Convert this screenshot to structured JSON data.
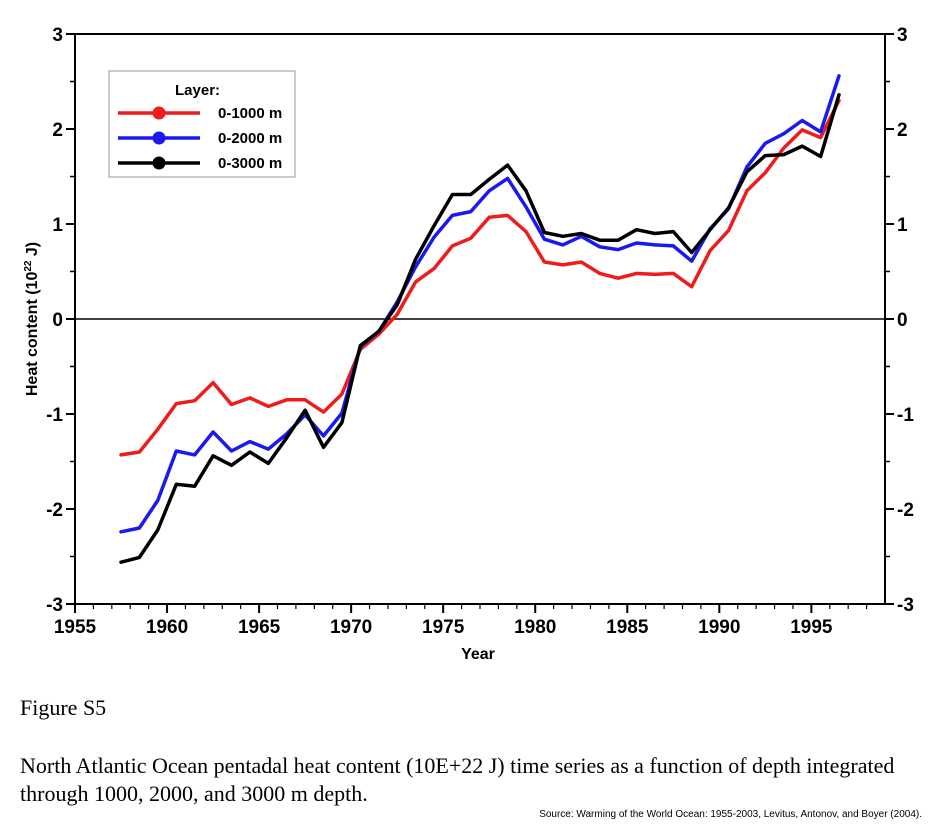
{
  "figure": {
    "label": "Figure S5",
    "caption": "North Atlantic Ocean pentadal heat content (10E+22 J) time series as a function of depth integrated through 1000, 2000, and 3000 m depth.",
    "source": "Source: Warming of the World Ocean: 1955-2003, Levitus, Antonov, and Boyer (2004)."
  },
  "chart_data": {
    "type": "line",
    "title": "",
    "xlabel": "Year",
    "ylabel_main": "Heat content (10",
    "ylabel_sup": "22",
    "ylabel_tail": " J)",
    "xlim": [
      1955,
      1999
    ],
    "ylim": [
      -3,
      3
    ],
    "x_ticks": [
      "1955",
      "1960",
      "1965",
      "1970",
      "1975",
      "1980",
      "1985",
      "1990",
      "1995"
    ],
    "y_ticks": [
      "-3",
      "-2",
      "-1",
      "0",
      "1",
      "2",
      "3"
    ],
    "legend_title": "Layer:",
    "legend_position": "top-left",
    "x": [
      1957.5,
      1958.5,
      1959.5,
      1960.5,
      1961.5,
      1962.5,
      1963.5,
      1964.5,
      1965.5,
      1966.5,
      1967.5,
      1968.5,
      1969.5,
      1970.5,
      1971.5,
      1972.5,
      1973.5,
      1974.5,
      1975.5,
      1976.5,
      1977.5,
      1978.5,
      1979.5,
      1980.5,
      1981.5,
      1982.5,
      1983.5,
      1984.5,
      1985.5,
      1986.5,
      1987.5,
      1988.5,
      1989.5,
      1990.5,
      1991.5,
      1992.5,
      1993.5,
      1994.5,
      1995.5,
      1996.5
    ],
    "series": [
      {
        "name": "0-1000 m",
        "color": "#ee1c1c",
        "values": [
          -1.43,
          -1.4,
          -1.16,
          -0.89,
          -0.86,
          -0.67,
          -0.9,
          -0.83,
          -0.92,
          -0.85,
          -0.85,
          -0.98,
          -0.79,
          -0.32,
          -0.16,
          0.05,
          0.39,
          0.53,
          0.77,
          0.85,
          1.07,
          1.09,
          0.92,
          0.6,
          0.57,
          0.6,
          0.48,
          0.43,
          0.48,
          0.47,
          0.48,
          0.34,
          0.72,
          0.93,
          1.35,
          1.54,
          1.8,
          1.99,
          1.91,
          2.3
        ]
      },
      {
        "name": "0-2000 m",
        "color": "#1a1aee",
        "values": [
          -2.24,
          -2.2,
          -1.91,
          -1.39,
          -1.43,
          -1.19,
          -1.39,
          -1.29,
          -1.37,
          -1.21,
          -1.01,
          -1.23,
          -0.99,
          -0.29,
          -0.13,
          0.18,
          0.55,
          0.86,
          1.09,
          1.13,
          1.35,
          1.48,
          1.18,
          0.84,
          0.78,
          0.87,
          0.76,
          0.73,
          0.8,
          0.78,
          0.77,
          0.61,
          0.95,
          1.16,
          1.6,
          1.85,
          1.95,
          2.09,
          1.97,
          2.56
        ]
      },
      {
        "name": "0-3000 m",
        "color": "#000000",
        "values": [
          -2.56,
          -2.51,
          -2.22,
          -1.74,
          -1.76,
          -1.44,
          -1.54,
          -1.4,
          -1.52,
          -1.25,
          -0.96,
          -1.35,
          -1.09,
          -0.28,
          -0.13,
          0.15,
          0.63,
          0.98,
          1.31,
          1.31,
          1.47,
          1.62,
          1.35,
          0.91,
          0.87,
          0.9,
          0.83,
          0.83,
          0.94,
          0.9,
          0.92,
          0.7,
          0.94,
          1.17,
          1.55,
          1.72,
          1.73,
          1.82,
          1.71,
          2.36
        ]
      }
    ]
  }
}
